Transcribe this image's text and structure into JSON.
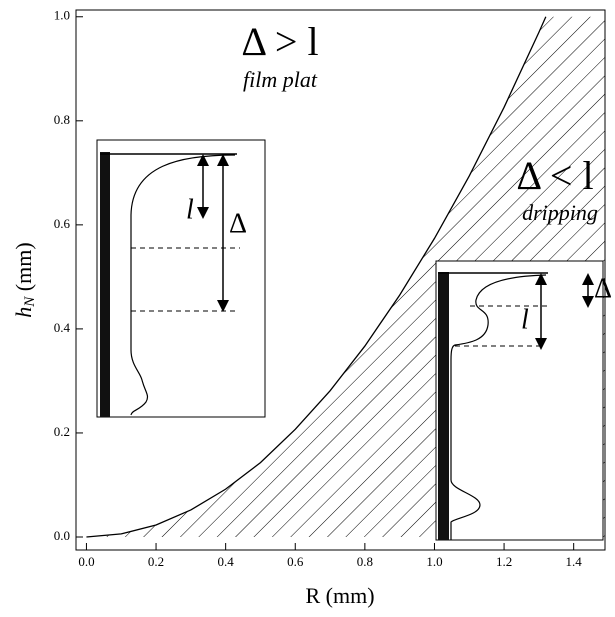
{
  "chart_data": {
    "type": "line",
    "x_label": "R (mm)",
    "y_label": {
      "main": "h",
      "sub": "N",
      "unit": " (mm)"
    },
    "xlim": [
      -0.03,
      1.49
    ],
    "ylim": [
      -0.025,
      1.013
    ],
    "xticks": [
      {
        "value": 0,
        "label": "0.0"
      },
      {
        "value": 0.2,
        "label": "0.2"
      },
      {
        "value": 0.4,
        "label": "0.4"
      },
      {
        "value": 0.6,
        "label": "0.6"
      },
      {
        "value": 0.8,
        "label": "0.8"
      },
      {
        "value": 1,
        "label": "1.0"
      },
      {
        "value": 1.2,
        "label": "1.2"
      },
      {
        "value": 1.4,
        "label": "1.4"
      }
    ],
    "yticks": [
      {
        "value": 0,
        "label": "0.0"
      },
      {
        "value": 0.2,
        "label": "0.2"
      },
      {
        "value": 0.4,
        "label": "0.4"
      },
      {
        "value": 0.6,
        "label": "0.6"
      },
      {
        "value": 0.8,
        "label": "0.8"
      },
      {
        "value": 1,
        "label": "1.0"
      }
    ],
    "series": [
      {
        "color": "#000000",
        "x": [
          0,
          0.1,
          0.2,
          0.3,
          0.4,
          0.5,
          0.6,
          0.7,
          0.8,
          0.9,
          1.0,
          1.1,
          1.2,
          1.3,
          1.32
        ],
        "values": [
          0,
          0.006,
          0.023,
          0.052,
          0.092,
          0.143,
          0.207,
          0.281,
          0.367,
          0.465,
          0.574,
          0.694,
          0.826,
          0.97,
          1.0
        ]
      }
    ],
    "annotations": [
      "Δ > l",
      "film plat",
      "Δ < l",
      "dripping"
    ],
    "inset_labels": [
      "l",
      "Δ",
      "Δ",
      "l"
    ]
  }
}
